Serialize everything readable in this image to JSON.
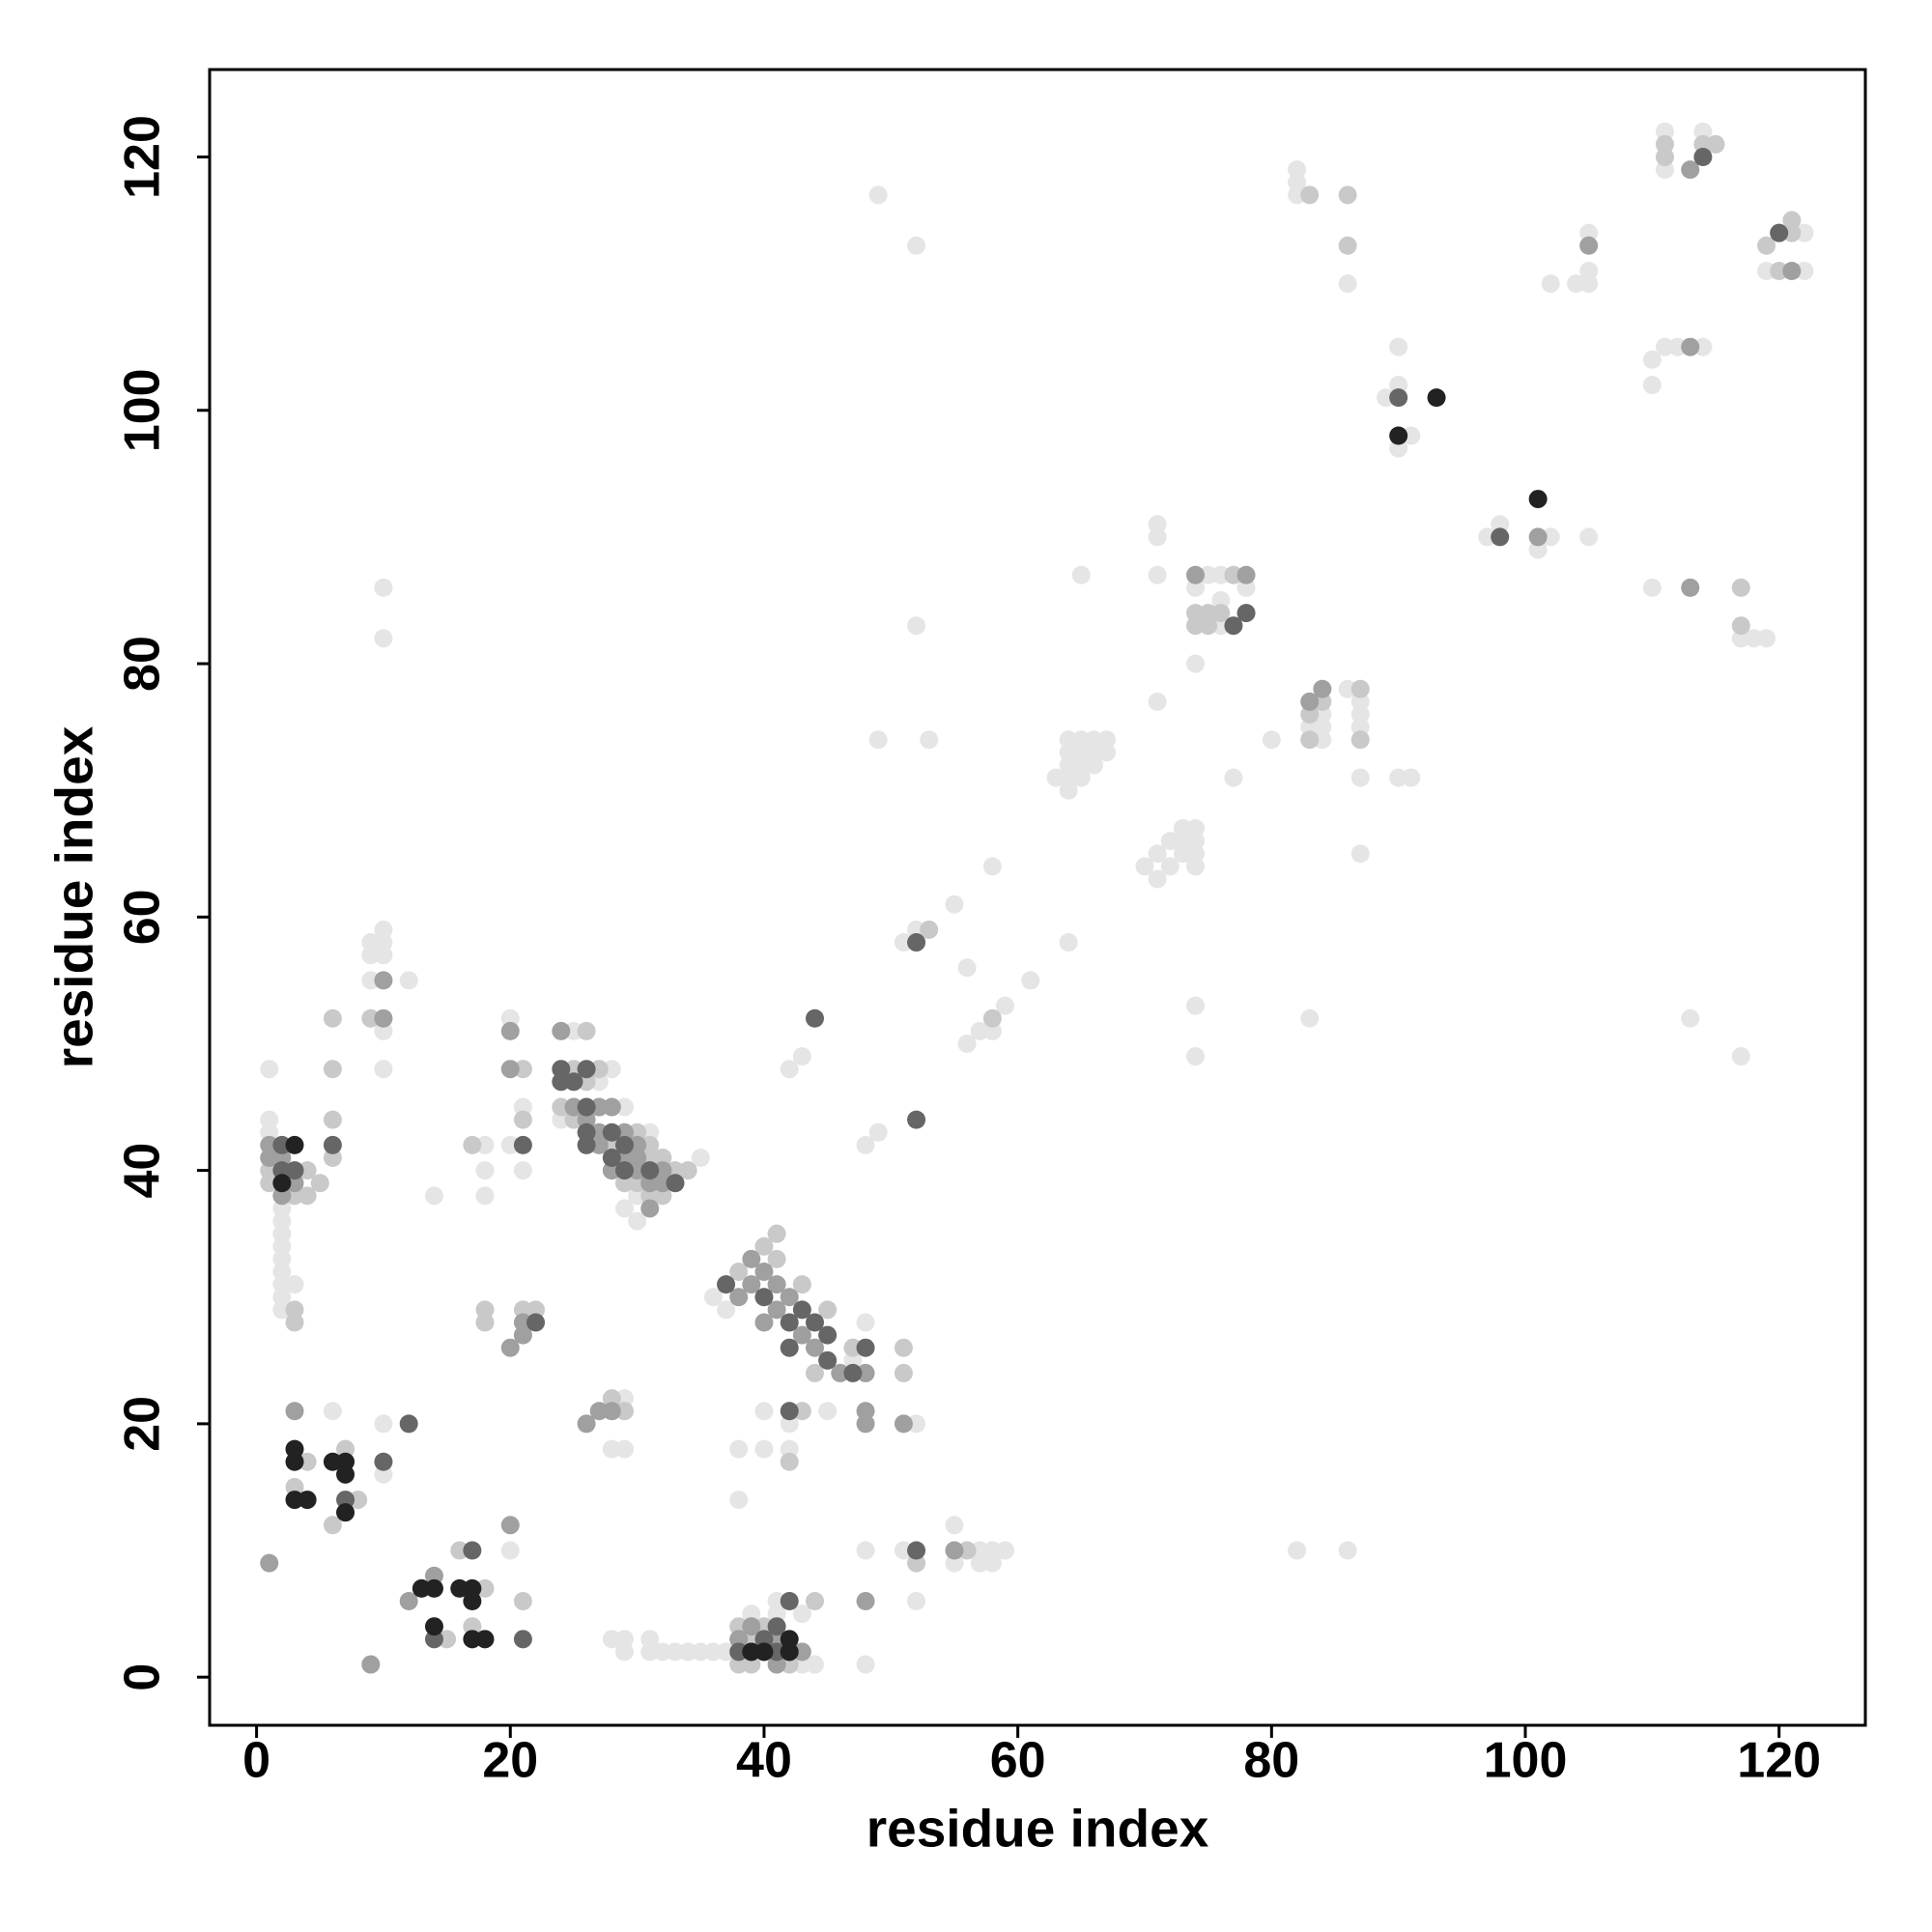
{
  "chart_data": {
    "type": "scatter",
    "xlabel": "residue index",
    "ylabel": "residue index",
    "xlim": [
      -3.7,
      126.8
    ],
    "ylim": [
      -3.8,
      126.9
    ],
    "xticks": [
      0,
      20,
      40,
      60,
      80,
      100,
      120
    ],
    "yticks": [
      0,
      20,
      40,
      60,
      80,
      100,
      120
    ],
    "grid": false,
    "series": [
      {
        "color": "#e5e5e5",
        "x": [
          6,
          10,
          10,
          1,
          1,
          1,
          2,
          2,
          2,
          2,
          2,
          2,
          2,
          2,
          2,
          3,
          9,
          9,
          9,
          10,
          10,
          10,
          10,
          10,
          12,
          10,
          10,
          14,
          18,
          18,
          18,
          20,
          21,
          21,
          20,
          20,
          25,
          28,
          27,
          29,
          24,
          31,
          35,
          30,
          29,
          30,
          36,
          37,
          47,
          48,
          28,
          29,
          29,
          38,
          38,
          40,
          40,
          42,
          42,
          45,
          52,
          28,
          29,
          31,
          29,
          31,
          32,
          33,
          34,
          35,
          36,
          37,
          43,
          44,
          39,
          41,
          41,
          43,
          48,
          51,
          52,
          55,
          55,
          57,
          58,
          59,
          57,
          58,
          48,
          42,
          43,
          48,
          49,
          56,
          57,
          58,
          59,
          61,
          56,
          51,
          52,
          55,
          58,
          64,
          49,
          53,
          52,
          49,
          52,
          63,
          64,
          64,
          65,
          64,
          65,
          66,
          64,
          65,
          66,
          67,
          64,
          65,
          66,
          67,
          65,
          70,
          71,
          71,
          72,
          72,
          73,
          73,
          73,
          74,
          74,
          74,
          74,
          71,
          74,
          74,
          74,
          71,
          71,
          71,
          77,
          80,
          75,
          76,
          78,
          74,
          76,
          76,
          84,
          83,
          84,
          84,
          86,
          87,
          87,
          87,
          87,
          87,
          90,
          91,
          83,
          82,
          86,
          82,
          82,
          82,
          86,
          89,
          90,
          90,
          91,
          90,
          97,
          98,
          101,
          102,
          105,
          102,
          104,
          105,
          105,
          105,
          110,
          110,
          111,
          112,
          114,
          110,
          117,
          118,
          119,
          113,
          117,
          111,
          111,
          114,
          119,
          122,
          122
        ],
        "values": [
          21,
          20,
          16,
          43,
          44,
          48,
          29,
          30,
          31,
          32,
          33,
          34,
          35,
          36,
          37,
          31,
          55,
          57,
          58,
          57,
          58,
          59,
          51,
          48,
          55,
          86,
          82,
          38,
          42,
          40,
          38,
          42,
          45,
          40,
          52,
          10,
          51,
          48,
          47,
          45,
          44,
          43,
          41,
          38,
          37,
          36,
          30,
          29,
          25,
          28,
          18,
          18,
          22,
          18,
          14,
          18,
          21,
          20,
          18,
          21,
          20,
          3,
          3,
          3,
          2,
          2,
          2,
          2,
          2,
          2,
          2,
          2,
          1,
          1,
          5,
          5,
          6,
          5,
          10,
          10,
          6,
          9,
          12,
          10,
          10,
          10,
          9,
          9,
          1,
          48,
          49,
          42,
          43,
          50,
          51,
          51,
          53,
          55,
          56,
          58,
          59,
          61,
          64,
          58,
          74,
          74,
          83,
          117,
          113,
          71,
          71,
          70,
          71,
          72,
          72,
          72,
          73,
          73,
          73,
          73,
          74,
          74,
          74,
          74,
          87,
          64,
          63,
          65,
          64,
          66,
          65,
          66,
          67,
          64,
          65,
          66,
          67,
          77,
          80,
          53,
          49,
          87,
          90,
          91,
          71,
          74,
          87,
          87,
          86,
          86,
          85,
          83,
          76,
          75,
          75,
          74,
          78,
          77,
          76,
          75,
          71,
          65,
          71,
          71,
          52,
          10,
          10,
          117,
          118,
          119,
          110,
          101,
          102,
          105,
          98,
          97,
          90,
          91,
          89,
          90,
          90,
          110,
          110,
          110,
          111,
          114,
          102,
          104,
          105,
          105,
          105,
          86,
          82,
          82,
          82,
          52,
          49,
          119,
          122,
          122,
          111,
          114,
          111
        ]
      },
      {
        "color": "#c9c9c9",
        "x": [
          6,
          8,
          7,
          4,
          3,
          16,
          18,
          17,
          15,
          21,
          1,
          1,
          4,
          3,
          5,
          4,
          6,
          6,
          6,
          6,
          3,
          3,
          9,
          17,
          21,
          21,
          18,
          18,
          21,
          22,
          26,
          25,
          27,
          26,
          24,
          25,
          28,
          30,
          31,
          31,
          32,
          33,
          34,
          29,
          30,
          31,
          32,
          38,
          40,
          41,
          41,
          43,
          45,
          44,
          47,
          51,
          51,
          28,
          29,
          42,
          43,
          38,
          39,
          42,
          39,
          38,
          40,
          44,
          52,
          56,
          58,
          53,
          74,
          75,
          76,
          74,
          75,
          77,
          84,
          83,
          83,
          87,
          87,
          83,
          86,
          86,
          111,
          111,
          114,
          115,
          119,
          120,
          121,
          121,
          117,
          117
        ],
        "values": [
          12,
          14,
          18,
          17,
          15,
          10,
          7,
          4,
          3,
          6,
          39,
          40,
          38,
          38,
          39,
          40,
          41,
          44,
          48,
          52,
          28,
          29,
          52,
          42,
          44,
          48,
          28,
          29,
          29,
          29,
          51,
          48,
          48,
          47,
          45,
          44,
          42,
          43,
          42,
          41,
          41,
          40,
          40,
          39,
          39,
          38,
          38,
          32,
          34,
          35,
          33,
          31,
          29,
          24,
          26,
          26,
          24,
          22,
          21,
          17,
          21,
          1,
          1,
          1,
          3,
          4,
          4,
          6,
          9,
          10,
          52,
          59,
          84,
          84,
          84,
          83,
          83,
          87,
          77,
          76,
          74,
          78,
          74,
          117,
          117,
          113,
          120,
          121,
          121,
          121,
          113,
          111,
          115,
          114,
          86,
          83
        ]
      },
      {
        "color": "#a0a0a0",
        "x": [
          1,
          9,
          3,
          12,
          14,
          20,
          1,
          1,
          2,
          2,
          3,
          10,
          10,
          20,
          20,
          20,
          21,
          21,
          24,
          25,
          27,
          28,
          26,
          27,
          29,
          27,
          30,
          29,
          30,
          28,
          30,
          32,
          31,
          32,
          31,
          38,
          39,
          39,
          40,
          41,
          41,
          40,
          42,
          43,
          44,
          46,
          48,
          28,
          27,
          26,
          48,
          48,
          51,
          43,
          41,
          38,
          41,
          39,
          48,
          55,
          74,
          78,
          83,
          84,
          101,
          105,
          113,
          113,
          113,
          121
        ],
        "values": [
          9,
          1,
          21,
          6,
          8,
          12,
          41,
          42,
          41,
          38,
          39,
          52,
          55,
          48,
          51,
          26,
          27,
          28,
          51,
          45,
          45,
          45,
          44,
          43,
          43,
          42,
          42,
          41,
          41,
          40,
          40,
          40,
          39,
          39,
          37,
          30,
          33,
          31,
          32,
          31,
          29,
          28,
          30,
          27,
          26,
          24,
          24,
          21,
          21,
          20,
          21,
          20,
          20,
          2,
          1,
          3,
          3,
          4,
          6,
          10,
          87,
          87,
          77,
          78,
          90,
          113,
          105,
          86,
          119,
          111
        ]
      },
      {
        "color": "#666666",
        "x": [
          7,
          10,
          12,
          17,
          14,
          21,
          2,
          2,
          3,
          6,
          21,
          22,
          24,
          26,
          24,
          25,
          26,
          26,
          28,
          26,
          29,
          28,
          29,
          31,
          33,
          37,
          40,
          42,
          43,
          42,
          44,
          45,
          45,
          48,
          47,
          42,
          38,
          41,
          40,
          41,
          42,
          52,
          44,
          52,
          52,
          78,
          77,
          90,
          98,
          114,
          120
        ],
        "values": [
          14,
          17,
          20,
          10,
          3,
          3,
          42,
          40,
          40,
          42,
          42,
          28,
          48,
          48,
          47,
          47,
          45,
          43,
          43,
          42,
          42,
          41,
          40,
          40,
          39,
          31,
          30,
          28,
          29,
          26,
          28,
          27,
          25,
          26,
          24,
          21,
          2,
          2,
          3,
          4,
          6,
          10,
          52,
          44,
          58,
          84,
          83,
          101,
          90,
          120,
          114
        ]
      },
      {
        "color": "#222222",
        "x": [
          3,
          4,
          3,
          3,
          6,
          7,
          7,
          7,
          13,
          14,
          16,
          17,
          17,
          14,
          17,
          18,
          2,
          3,
          39,
          40,
          42,
          42,
          90,
          93,
          101
        ],
        "values": [
          14,
          14,
          17,
          18,
          17,
          17,
          16,
          13,
          7,
          7,
          7,
          7,
          6,
          4,
          3,
          3,
          39,
          42,
          2,
          2,
          2,
          3,
          98,
          101,
          93
        ]
      }
    ]
  }
}
